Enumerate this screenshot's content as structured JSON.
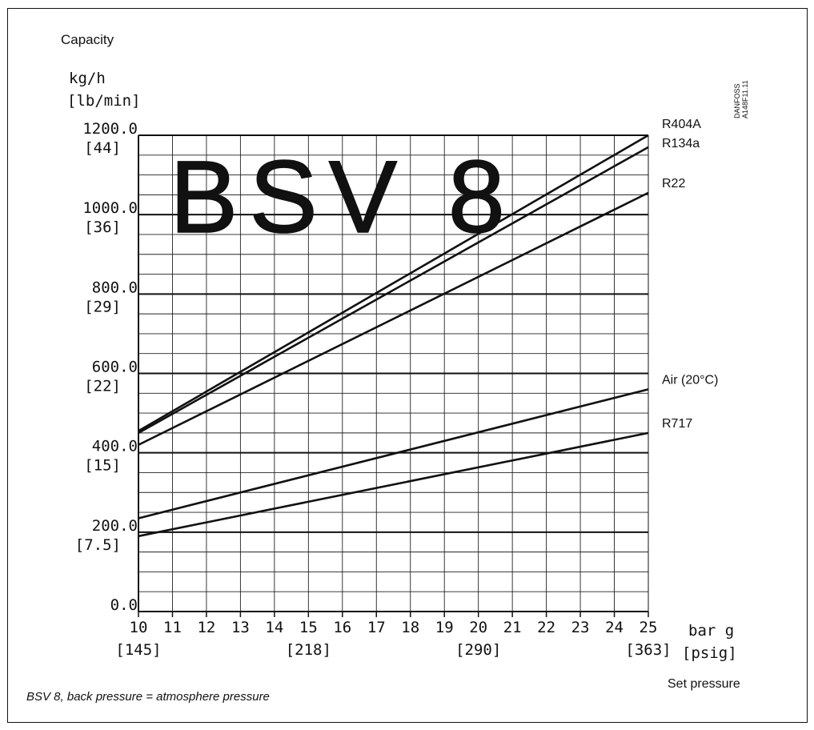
{
  "chart_data": {
    "type": "line",
    "title": "BSV 8",
    "ylabel": "Capacity",
    "yunit": "kg/h",
    "yunit_alt": "[lb/min]",
    "xlabel": "Set pressure",
    "xunit": "bar g",
    "xunit_alt": "[psig]",
    "xlim": [
      10,
      25
    ],
    "ylim": [
      0,
      1200
    ],
    "grid": true,
    "x_ticks": [
      "10",
      "11",
      "12",
      "13",
      "14",
      "15",
      "16",
      "17",
      "18",
      "19",
      "20",
      "21",
      "22",
      "23",
      "24",
      "25"
    ],
    "x_ticks_alt": [
      {
        "at": 10,
        "label": "[145]"
      },
      {
        "at": 15,
        "label": "[218]"
      },
      {
        "at": 20,
        "label": "[290]"
      },
      {
        "at": 25,
        "label": "[363]"
      }
    ],
    "y_ticks": [
      {
        "value": 0,
        "label": "0.0",
        "alt": ""
      },
      {
        "value": 200,
        "label": "200.0",
        "alt": "[7.5]"
      },
      {
        "value": 400,
        "label": "400.0",
        "alt": "[15]"
      },
      {
        "value": 600,
        "label": "600.0",
        "alt": "[22]"
      },
      {
        "value": 800,
        "label": "800.0",
        "alt": "[29]"
      },
      {
        "value": 1000,
        "label": "1000.0",
        "alt": "[36]"
      },
      {
        "value": 1200,
        "label": "1200.0",
        "alt": "[44]"
      }
    ],
    "series": [
      {
        "name": "R404A",
        "x": [
          10,
          25
        ],
        "y": [
          455,
          1200
        ]
      },
      {
        "name": "R134a",
        "x": [
          10,
          25
        ],
        "y": [
          450,
          1170
        ]
      },
      {
        "name": "R22",
        "x": [
          10,
          25
        ],
        "y": [
          420,
          1055
        ]
      },
      {
        "name": "Air (20°C)",
        "x": [
          10,
          25
        ],
        "y": [
          235,
          560
        ]
      },
      {
        "name": "R717",
        "x": [
          10,
          25
        ],
        "y": [
          190,
          450
        ]
      }
    ],
    "watermark": "DANFOSS\nA148F11.11",
    "caption": "BSV 8, back pressure = atmosphere pressure"
  }
}
